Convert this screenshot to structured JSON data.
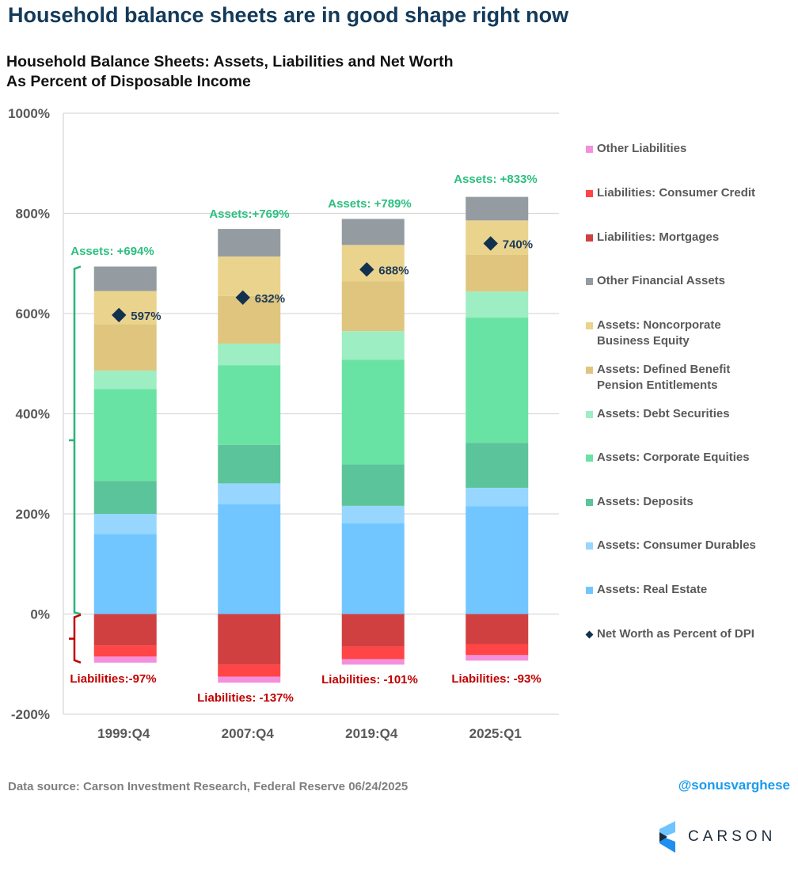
{
  "headline": "Household balance sheets are in good shape right now",
  "subtitle_line1": "Household Balance Sheets: Assets, Liabilities and Net Worth",
  "subtitle_line2": "As Percent of Disposable Income",
  "footer": {
    "source": "Data source: Carson Investment Research, Federal Reserve   06/24/2025",
    "handle": "@sonusvarghese",
    "logo_text": "CARSON"
  },
  "legend": [
    {
      "key": "other_liabilities",
      "label": "Other Liabilities",
      "color": "#f48fdc",
      "type": "square"
    },
    {
      "key": "consumer_credit",
      "label": "Liabilities: Consumer Credit",
      "color": "#ff4545",
      "type": "square"
    },
    {
      "key": "mortgages",
      "label": "Liabilities: Mortgages",
      "color": "#d04040",
      "type": "square"
    },
    {
      "key": "other_financial",
      "label": "Other Financial Assets",
      "color": "#949ca1",
      "type": "square"
    },
    {
      "key": "noncorporate",
      "label": "Assets: Noncorporate\nBusiness Equity",
      "color": "#ead48d",
      "type": "square"
    },
    {
      "key": "pension",
      "label": "Assets: Defined Benefit\nPension Entitlements",
      "color": "#dfc57e",
      "type": "square"
    },
    {
      "key": "debt_securities",
      "label": "Assets: Debt Securities",
      "color": "#9deec3",
      "type": "square"
    },
    {
      "key": "corporate_equities",
      "label": "Assets: Corporate Equities",
      "color": "#69e3a3",
      "type": "square"
    },
    {
      "key": "deposits",
      "label": "Assets: Deposits",
      "color": "#5cc49a",
      "type": "square"
    },
    {
      "key": "consumer_durables",
      "label": "Assets: Consumer Durables",
      "color": "#97d6ff",
      "type": "square"
    },
    {
      "key": "real_estate",
      "label": "Assets: Real Estate",
      "color": "#72c6ff",
      "type": "square"
    },
    {
      "key": "net_worth",
      "label": "Net Worth as Percent of DPI",
      "color": "#12314f",
      "type": "diamond"
    }
  ],
  "chart_data": {
    "type": "bar",
    "stacked": true,
    "title": "Household Balance Sheets: Assets, Liabilities and Net Worth",
    "subtitle": "As Percent of Disposable Income",
    "xlabel": "",
    "ylabel": "",
    "ylim": [
      -200,
      1000
    ],
    "yticks": [
      -200,
      0,
      200,
      400,
      600,
      800,
      1000
    ],
    "ytick_labels": [
      "-200%",
      "0%",
      "200%",
      "400%",
      "600%",
      "800%",
      "1000%"
    ],
    "grid": true,
    "legend_position": "right",
    "categories": [
      "1999:Q4",
      "2007:Q4",
      "2019:Q4",
      "2025:Q1"
    ],
    "series": [
      {
        "key": "real_estate",
        "name": "Assets: Real Estate",
        "color": "#72c6ff",
        "values": [
          160,
          219,
          181,
          215
        ]
      },
      {
        "key": "consumer_durables",
        "name": "Assets: Consumer Durables",
        "color": "#97d6ff",
        "values": [
          40,
          42,
          35,
          37
        ]
      },
      {
        "key": "deposits",
        "name": "Assets: Deposits",
        "color": "#5cc49a",
        "values": [
          66,
          77,
          83,
          90
        ]
      },
      {
        "key": "corporate_equities",
        "name": "Assets: Corporate Equities",
        "color": "#69e3a3",
        "values": [
          183,
          159,
          209,
          250
        ]
      },
      {
        "key": "debt_securities",
        "name": "Assets: Debt Securities",
        "color": "#9deec3",
        "values": [
          37,
          43,
          57,
          52
        ]
      },
      {
        "key": "pension",
        "name": "Assets: Defined Benefit Pension Entitlements",
        "color": "#dfc57e",
        "values": [
          93,
          95,
          99,
          73
        ]
      },
      {
        "key": "noncorporate",
        "name": "Assets: Noncorporate Business Equity",
        "color": "#ead48d",
        "values": [
          66,
          79,
          73,
          69
        ]
      },
      {
        "key": "other_financial",
        "name": "Other Financial Assets",
        "color": "#949ca1",
        "values": [
          49,
          55,
          52,
          47
        ]
      },
      {
        "key": "mortgages",
        "name": "Liabilities: Mortgages",
        "color": "#d04040",
        "values": [
          -63,
          -101,
          -65,
          -60
        ]
      },
      {
        "key": "consumer_credit",
        "name": "Liabilities: Consumer Credit",
        "color": "#ff4545",
        "values": [
          -22,
          -24,
          -25,
          -22
        ]
      },
      {
        "key": "other_liabilities",
        "name": "Other Liabilities",
        "color": "#f48fdc",
        "values": [
          -12,
          -12,
          -11,
          -11
        ]
      }
    ],
    "net_worth": {
      "name": "Net Worth as Percent of DPI",
      "values": [
        597,
        632,
        688,
        740
      ],
      "labels": [
        "597%",
        "632%",
        "688%",
        "740%"
      ]
    },
    "asset_totals": {
      "values": [
        694,
        769,
        789,
        833
      ],
      "labels": [
        "Assets: +694%",
        "Assets:+769%",
        "Assets: +789%",
        "Assets: +833%"
      ]
    },
    "liability_totals": {
      "values": [
        -97,
        -137,
        -101,
        -93
      ],
      "labels": [
        "Liabilities:-97%",
        "Liabilities: -137%",
        "Liabilities: -101%",
        "Liabilities: -93%"
      ]
    },
    "annotations": [
      {
        "type": "bracket",
        "target": "assets",
        "category": "1999:Q4",
        "color": "#2bb37a"
      },
      {
        "type": "bracket",
        "target": "liabilities",
        "category": "1999:Q4",
        "color": "#c00000"
      }
    ],
    "colors": {
      "asset_label": "#2bbf80",
      "liability_label": "#c00000",
      "net_worth_label": "#1d3b5a",
      "axis_text": "#595959",
      "grid": "#d9d9d9"
    }
  }
}
